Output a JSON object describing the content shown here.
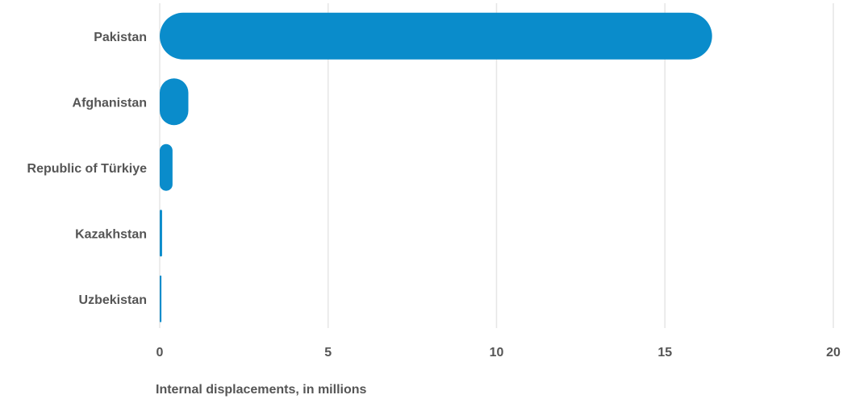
{
  "chart_data": {
    "type": "bar",
    "orientation": "horizontal",
    "categories": [
      "Pakistan",
      "Afghanistan",
      "Republic of Türkiye",
      "Kazakhstan",
      "Uzbekistan"
    ],
    "values": [
      16.4,
      0.85,
      0.38,
      0.07,
      0.05
    ],
    "title": "",
    "xlabel": "Internal displacements, in millions",
    "ylabel": "",
    "xlim": [
      0,
      20
    ],
    "xticks": [
      0,
      5,
      10,
      15,
      20
    ],
    "grid": true,
    "legend": "none",
    "colors": {
      "bar": "#0a8ccb",
      "grid": "#e6e6e6",
      "text": "#555555"
    }
  }
}
